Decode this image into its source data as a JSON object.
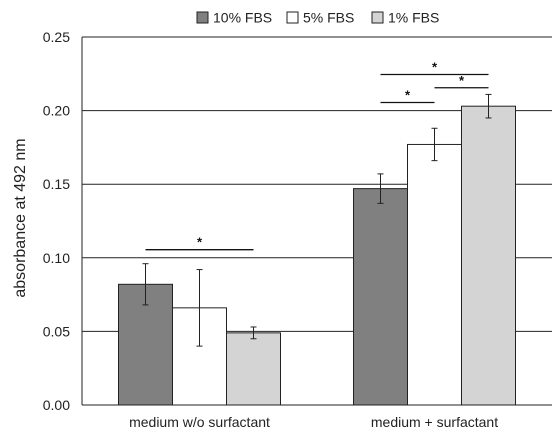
{
  "chart_data": {
    "type": "bar",
    "title": "",
    "xlabel": "",
    "ylabel": "absorbance at 492 nm",
    "ylim": [
      0,
      0.25
    ],
    "yticks": [
      0.0,
      0.05,
      0.1,
      0.15,
      0.2,
      0.25
    ],
    "ytick_labels": [
      "0.00",
      "0.05",
      "0.10",
      "0.15",
      "0.20",
      "0.25"
    ],
    "grid": "horizontal",
    "legend_position": "top",
    "categories": [
      "medium w/o surfactant",
      "medium + surfactant"
    ],
    "series": [
      {
        "name": "10% FBS",
        "color": "#808080",
        "values": [
          0.082,
          0.147
        ],
        "errors": [
          0.014,
          0.01
        ]
      },
      {
        "name": "5% FBS",
        "color": "#ffffff",
        "values": [
          0.066,
          0.177
        ],
        "errors": [
          0.026,
          0.011
        ]
      },
      {
        "name": "1% FBS",
        "color": "#d4d4d4",
        "values": [
          0.049,
          0.203
        ],
        "errors": [
          0.004,
          0.008
        ]
      }
    ],
    "significance": [
      {
        "category": 0,
        "from_series": 0,
        "to_series": 2,
        "y": 0.1055,
        "label": "*"
      },
      {
        "category": 1,
        "from_series": 1,
        "to_series": 2,
        "y": 0.2155,
        "label": "*"
      },
      {
        "category": 1,
        "from_series": 0,
        "to_series": 1,
        "y": 0.2055,
        "label": "*"
      },
      {
        "category": 1,
        "from_series": 0,
        "to_series": 2,
        "y": 0.2245,
        "label": "*"
      }
    ]
  }
}
